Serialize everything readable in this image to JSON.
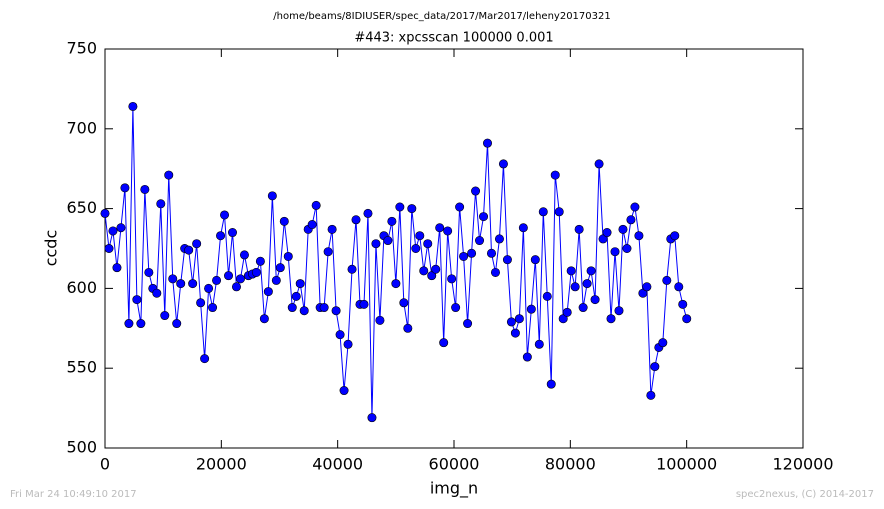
{
  "chart_data": {
    "type": "line",
    "suptitle": "/home/beams/8IDIUSER/spec_data/2017/Mar2017/leheny20170321",
    "title": "#443: xpcsscan 100000 0.001",
    "xlabel": "img_n",
    "ylabel": "ccdc",
    "footer_left": "Fri Mar 24 10:49:10 2017",
    "footer_right": "spec2nexus, (C) 2014-2017",
    "color": "#0000ff",
    "marker": "circle",
    "xlim": [
      0,
      120000
    ],
    "xticks": [
      0,
      20000,
      40000,
      60000,
      80000,
      100000,
      120000
    ],
    "ylim": [
      500,
      750
    ],
    "yticks": [
      500,
      550,
      600,
      650,
      700,
      750
    ],
    "x": [
      0,
      685,
      1370,
      2055,
      2740,
      3425,
      4110,
      4795,
      5480,
      6165,
      6850,
      7535,
      8220,
      8905,
      9590,
      10275,
      10960,
      11645,
      12330,
      13015,
      13700,
      14385,
      15070,
      15755,
      16440,
      17125,
      17810,
      18495,
      19180,
      19865,
      20550,
      21235,
      21920,
      22605,
      23290,
      23975,
      24660,
      25345,
      26030,
      26715,
      27400,
      28085,
      28770,
      29455,
      30140,
      30825,
      31510,
      32195,
      32880,
      33565,
      34250,
      34935,
      35620,
      36305,
      36990,
      37675,
      38360,
      39045,
      39730,
      40415,
      41100,
      41785,
      42470,
      43155,
      43840,
      44525,
      45210,
      45895,
      46580,
      47265,
      47950,
      48635,
      49320,
      50005,
      50690,
      51375,
      52060,
      52745,
      53430,
      54115,
      54800,
      55485,
      56170,
      56855,
      57540,
      58225,
      58910,
      59595,
      60280,
      60965,
      61650,
      62335,
      63020,
      63705,
      64390,
      65075,
      65760,
      66445,
      67130,
      67815,
      68500,
      69185,
      69870,
      70555,
      71240,
      71925,
      72610,
      73295,
      73980,
      74665,
      75350,
      76035,
      76720,
      77405,
      78090,
      78775,
      79460,
      80145,
      80830,
      81515,
      82200,
      82885,
      83570,
      84255,
      84940,
      85625,
      86310,
      86995,
      87680,
      88365,
      89050,
      89735,
      90420,
      91105,
      91790,
      92475,
      93160,
      93845,
      94530,
      95215,
      95900,
      96585,
      97270,
      97955,
      98640,
      99325,
      100010
    ],
    "values": [
      647,
      625,
      636,
      613,
      638,
      663,
      578,
      714,
      593,
      578,
      662,
      610,
      600,
      597,
      653,
      583,
      671,
      606,
      578,
      603,
      625,
      624,
      603,
      628,
      591,
      556,
      600,
      588,
      605,
      633,
      646,
      608,
      635,
      601,
      606,
      621,
      608,
      609,
      610,
      617,
      581,
      598,
      658,
      605,
      613,
      642,
      620,
      588,
      595,
      603,
      586,
      637,
      640,
      652,
      588,
      588,
      623,
      637,
      586,
      571,
      536,
      565,
      612,
      643,
      590,
      590,
      647,
      519,
      628,
      580,
      633,
      630,
      642,
      603,
      651,
      591,
      575,
      650,
      625,
      633,
      611,
      628,
      608,
      612,
      638,
      566,
      636,
      606,
      588,
      651,
      620,
      578,
      622,
      661,
      630,
      645,
      691,
      622,
      610,
      631,
      678,
      618,
      579,
      572,
      581,
      638,
      557,
      587,
      618,
      565,
      648,
      595,
      540,
      671,
      648,
      581,
      585,
      611,
      601,
      637,
      588,
      603,
      611,
      593,
      678,
      631,
      635,
      581,
      623,
      586,
      637,
      625,
      643,
      651,
      633,
      597,
      601,
      533,
      551,
      563,
      566,
      605,
      631,
      633,
      601,
      590,
      581
    ]
  }
}
